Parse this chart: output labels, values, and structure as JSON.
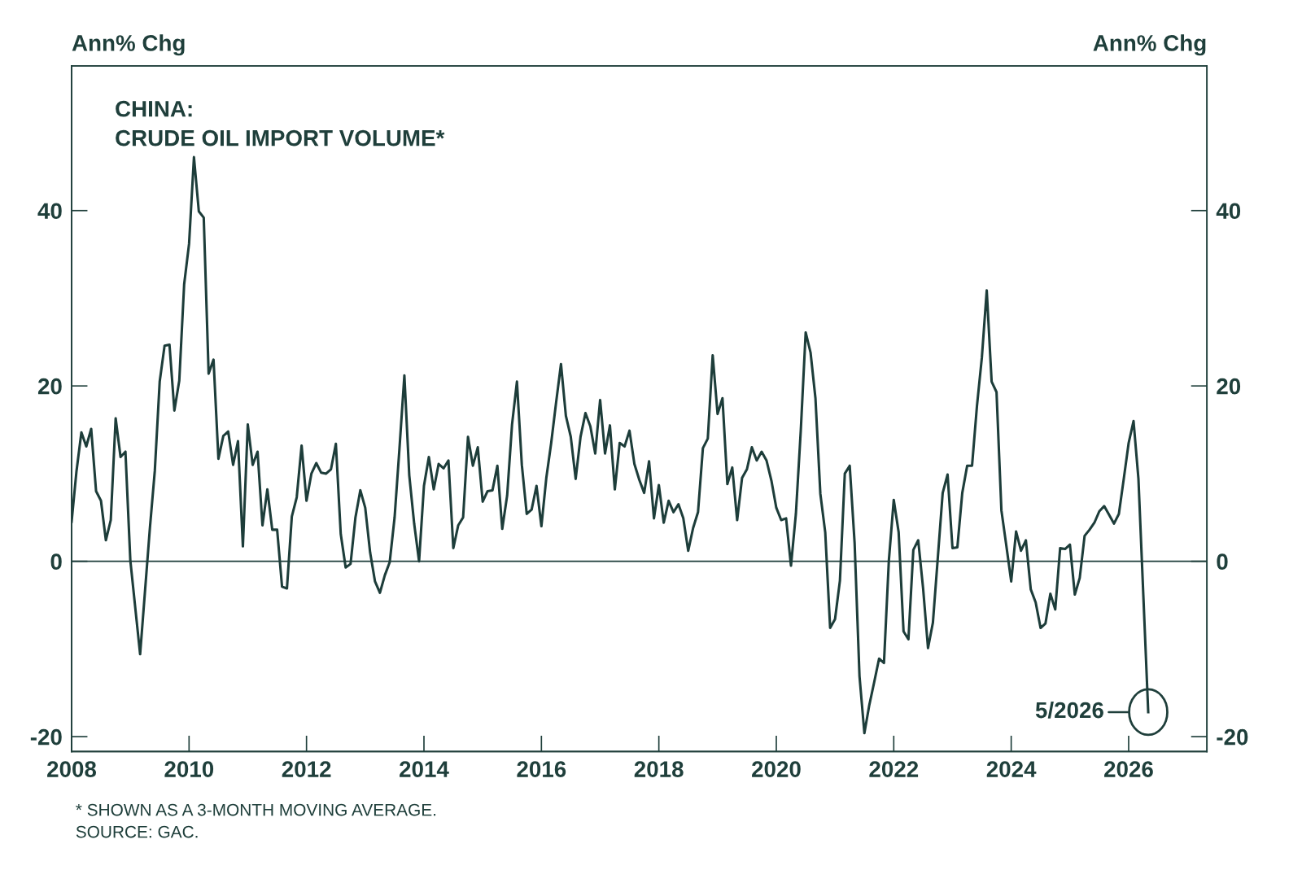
{
  "chart_data": {
    "type": "line",
    "title": "CHINA:\nCRUDE OIL IMPORT VOLUME*",
    "ylabel": "Ann% Chg",
    "y2label": "Ann% Chg",
    "x": [
      "2008-01",
      "2008-02",
      "2008-03",
      "2008-04",
      "2008-05",
      "2008-06",
      "2008-07",
      "2008-08",
      "2008-09",
      "2008-10",
      "2008-11",
      "2008-12",
      "2009-01",
      "2009-03",
      "2009-05",
      "2009-06",
      "2009-07",
      "2009-08",
      "2009-09",
      "2009-10",
      "2009-11",
      "2009-12",
      "2010-01",
      "2010-02",
      "2010-03",
      "2010-04",
      "2010-05",
      "2010-06",
      "2010-07",
      "2010-08",
      "2010-09",
      "2010-10",
      "2010-11",
      "2010-12",
      "2011-01",
      "2011-02",
      "2011-03",
      "2011-04",
      "2011-05",
      "2011-06",
      "2011-07",
      "2011-08",
      "2011-09",
      "2011-10",
      "2011-11",
      "2011-12",
      "2012-01",
      "2012-02",
      "2012-03",
      "2012-04",
      "2012-05",
      "2012-06",
      "2012-07",
      "2012-08",
      "2012-09",
      "2012-10",
      "2012-11",
      "2012-12",
      "2013-01",
      "2013-02",
      "2013-03",
      "2013-04",
      "2013-05",
      "2013-06",
      "2013-07",
      "2013-08",
      "2013-09",
      "2013-10",
      "2013-11",
      "2013-12",
      "2014-01",
      "2014-02",
      "2014-03",
      "2014-04",
      "2014-05",
      "2014-06",
      "2014-07",
      "2014-08",
      "2014-09",
      "2014-10",
      "2014-11",
      "2014-12",
      "2015-01",
      "2015-02",
      "2015-03",
      "2015-04",
      "2015-05",
      "2015-06",
      "2015-07",
      "2015-08",
      "2015-09",
      "2015-10",
      "2015-11",
      "2015-12",
      "2016-01",
      "2016-02",
      "2016-03",
      "2016-04",
      "2016-05",
      "2016-06",
      "2016-07",
      "2016-08",
      "2016-09",
      "2016-10",
      "2016-11",
      "2016-12",
      "2017-01",
      "2017-02",
      "2017-03",
      "2017-04",
      "2017-05",
      "2017-06",
      "2017-07",
      "2017-08",
      "2017-09",
      "2017-10",
      "2017-11",
      "2017-12",
      "2018-01",
      "2018-02",
      "2018-03",
      "2018-04",
      "2018-05",
      "2018-06",
      "2018-07",
      "2018-08",
      "2018-09",
      "2018-10",
      "2018-11",
      "2018-12",
      "2019-01",
      "2019-02",
      "2019-03",
      "2019-04",
      "2019-05",
      "2019-06",
      "2019-07",
      "2019-08",
      "2019-09",
      "2019-10",
      "2019-11",
      "2019-12",
      "2020-01",
      "2020-02",
      "2020-03",
      "2020-04",
      "2020-05",
      "2020-06",
      "2020-07",
      "2020-08",
      "2020-09",
      "2020-10",
      "2020-11",
      "2020-12",
      "2021-01",
      "2021-02",
      "2021-03",
      "2021-04",
      "2021-05",
      "2021-06",
      "2021-07",
      "2021-08",
      "2021-09",
      "2021-10",
      "2021-11",
      "2021-12",
      "2022-01",
      "2022-02",
      "2022-03",
      "2022-04",
      "2022-05",
      "2022-06",
      "2022-07",
      "2022-08",
      "2022-09",
      "2022-10",
      "2022-11",
      "2022-12",
      "2023-01",
      "2023-02",
      "2023-03",
      "2023-04",
      "2023-05",
      "2023-06",
      "2023-07",
      "2023-08",
      "2023-09",
      "2023-10",
      "2023-11",
      "2023-12",
      "2024-01",
      "2024-02",
      "2024-03",
      "2024-04",
      "2024-05",
      "2024-06",
      "2024-07",
      "2024-08",
      "2024-09",
      "2024-10",
      "2024-11",
      "2024-12",
      "2025-01",
      "2025-02",
      "2025-03",
      "2025-04",
      "2025-05",
      "2025-06",
      "2025-07",
      "2025-08",
      "2025-09",
      "2025-10",
      "2025-11",
      "2025-12",
      "2026-01",
      "2026-02",
      "2026-03",
      "2026-05"
    ],
    "series": [
      {
        "color": "#1d3d3a",
        "values": [
          4.5,
          10.3,
          14.7,
          13.1,
          15.1,
          8.0,
          6.9,
          2.4,
          4.7,
          16.3,
          11.9,
          12.5,
          0.1,
          -10.6,
          3.8,
          10.3,
          20.5,
          24.6,
          24.7,
          17.2,
          20.6,
          31.6,
          36.2,
          46.1,
          39.9,
          39.2,
          21.4,
          23.0,
          11.7,
          14.3,
          14.8,
          11.0,
          13.7,
          1.7,
          15.6,
          11.0,
          12.5,
          4.1,
          8.2,
          3.6,
          3.6,
          -2.9,
          -3.1,
          5.1,
          7.3,
          13.2,
          6.9,
          10.0,
          11.2,
          10.1,
          10.0,
          10.5,
          13.4,
          3.1,
          -0.7,
          -0.3,
          5.0,
          8.1,
          6.1,
          1.0,
          -2.3,
          -3.6,
          -1.6,
          -0.1,
          5.0,
          12.9,
          21.2,
          9.8,
          4.3,
          0.0,
          8.6,
          11.9,
          8.2,
          11.1,
          10.6,
          11.5,
          1.5,
          4.1,
          5.0,
          14.2,
          10.9,
          13.0,
          6.8,
          8.0,
          8.1,
          10.9,
          3.7,
          7.5,
          15.6,
          20.5,
          11.0,
          5.4,
          5.9,
          8.6,
          4.0,
          9.5,
          13.5,
          18.1,
          22.5,
          16.6,
          14.2,
          9.4,
          14.2,
          16.9,
          15.4,
          12.3,
          18.4,
          12.3,
          15.5,
          8.2,
          13.5,
          13.1,
          14.9,
          11.1,
          9.3,
          7.8,
          11.4,
          4.9,
          8.7,
          4.4,
          6.9,
          5.6,
          6.5,
          4.9,
          1.2,
          3.8,
          5.6,
          12.9,
          14.0,
          23.5,
          16.8,
          18.6,
          8.8,
          10.7,
          4.7,
          9.5,
          10.5,
          13.0,
          11.5,
          12.5,
          11.5,
          9.2,
          6.1,
          4.7,
          4.9,
          -0.5,
          5.4,
          14.9,
          26.1,
          23.8,
          18.6,
          7.7,
          3.3,
          -7.6,
          -6.6,
          -2.2,
          10.0,
          10.9,
          2.1,
          -13.1,
          -19.6,
          -16.4,
          -13.8,
          -11.1,
          -11.6,
          0.1,
          7.0,
          3.3,
          -8.0,
          -8.9,
          1.3,
          2.4,
          -3.1,
          -9.9,
          -7.0,
          0.4,
          7.8,
          9.9,
          1.5,
          1.6,
          7.8,
          10.9,
          10.9,
          17.7,
          23.2,
          30.9,
          20.5,
          19.3,
          5.8,
          1.8,
          -2.3,
          3.4,
          1.2,
          2.4,
          -3.2,
          -4.7,
          -7.6,
          -7.1,
          -3.7,
          -5.5,
          1.5,
          1.4,
          1.9,
          -3.8,
          -1.9,
          2.9,
          3.6,
          4.4,
          5.7,
          6.3,
          5.3,
          4.3,
          5.4,
          9.4,
          13.5,
          16.0,
          9.4,
          -17.2
        ]
      }
    ],
    "xlim": [
      "2008-01",
      "2027-05"
    ],
    "xticks": [
      {
        "value": "2008",
        "label": "2008"
      },
      {
        "value": "2010",
        "label": "2010"
      },
      {
        "value": "2012",
        "label": "2012"
      },
      {
        "value": "2014",
        "label": "2014"
      },
      {
        "value": "2016",
        "label": "2016"
      },
      {
        "value": "2018",
        "label": "2018"
      },
      {
        "value": "2020",
        "label": "2020"
      },
      {
        "value": "2022",
        "label": "2022"
      },
      {
        "value": "2024",
        "label": "2024"
      },
      {
        "value": "2026",
        "label": "2026"
      }
    ],
    "ylim": [
      -21.7,
      56.5
    ],
    "yticks": [
      -20,
      0,
      20,
      40
    ],
    "y2lim": [
      -21.7,
      56.5
    ],
    "y2ticks": [
      -20,
      0,
      20,
      40
    ],
    "ref_lines": [
      {
        "axis": "y",
        "value": 0,
        "color": "#1d3d3a"
      }
    ],
    "annotations": [
      {
        "text": "5/2026",
        "x": "2026-05",
        "y": -17.2
      },
      "* SHOWN AS A 3-MONTH MOVING AVERAGE.",
      "SOURCE: GAC."
    ],
    "grid": false,
    "legend": false
  }
}
